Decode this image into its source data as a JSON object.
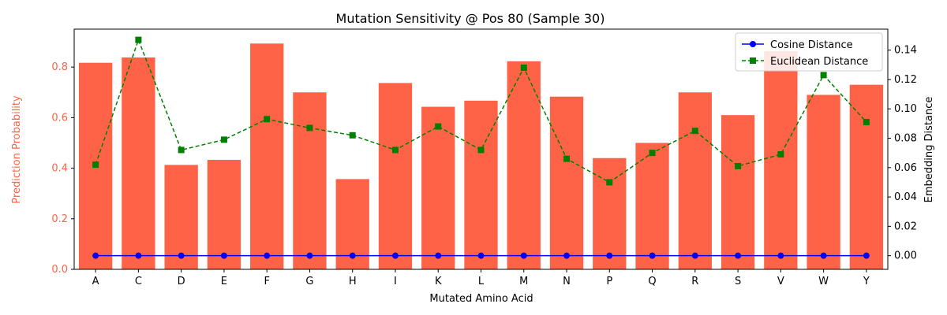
{
  "chart_data": {
    "type": "bar",
    "title": "Mutation Sensitivity @ Pos 80 (Sample 30)",
    "xlabel": "Mutated Amino Acid",
    "ylabel_left": "Prediction Probability",
    "ylabel_right": "Embedding Distance",
    "categories": [
      "A",
      "C",
      "D",
      "E",
      "F",
      "G",
      "H",
      "I",
      "K",
      "L",
      "M",
      "N",
      "P",
      "Q",
      "R",
      "S",
      "V",
      "W",
      "Y"
    ],
    "bar_series": {
      "values": [
        0.817,
        0.838,
        0.413,
        0.433,
        0.893,
        0.7,
        0.357,
        0.737,
        0.643,
        0.667,
        0.823,
        0.683,
        0.44,
        0.5,
        0.7,
        0.61,
        0.863,
        0.69,
        0.73
      ],
      "color": "#ff6347"
    },
    "line_series": [
      {
        "name": "Cosine Distance",
        "values": [
          0.0,
          0.0,
          0.0,
          0.0,
          0.0,
          0.0,
          0.0,
          0.0,
          0.0,
          0.0,
          0.0,
          0.0,
          0.0,
          0.0,
          0.0,
          0.0,
          0.0,
          0.0,
          0.0
        ],
        "color": "#0000ff",
        "marker": "circle",
        "linestyle": "solid"
      },
      {
        "name": "Euclidean Distance",
        "values": [
          0.062,
          0.147,
          0.072,
          0.079,
          0.093,
          0.087,
          0.082,
          0.072,
          0.088,
          0.072,
          0.128,
          0.066,
          0.05,
          0.07,
          0.085,
          0.061,
          0.069,
          0.123,
          0.091
        ],
        "color": "#008000",
        "marker": "square",
        "linestyle": "dashed"
      }
    ],
    "ylim_left": [
      0,
      0.95
    ],
    "ylim_right": [
      -0.0093,
      0.1543
    ],
    "yticks_left": [
      "0.0",
      "0.2",
      "0.4",
      "0.6",
      "0.8"
    ],
    "yticks_right": [
      "0.00",
      "0.02",
      "0.04",
      "0.06",
      "0.08",
      "0.10",
      "0.12",
      "0.14"
    ],
    "legend_position": "top-right",
    "grid": false
  }
}
